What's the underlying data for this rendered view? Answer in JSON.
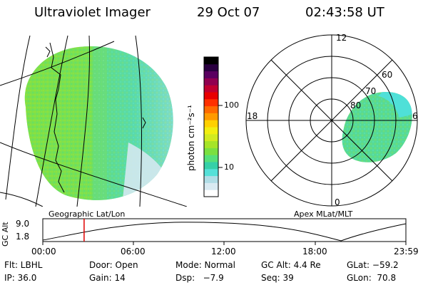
{
  "header": {
    "instrument": "Ultraviolet Imager",
    "date": "29 Oct 07",
    "time": "02:43:58 UT"
  },
  "panels": {
    "left_label": "Geographic Lat/Lon",
    "right_label": "Apex MLat/MLT"
  },
  "polar": {
    "mlt_labels": [
      "12",
      "18",
      "6",
      "0"
    ],
    "lat_labels": [
      "60",
      "70",
      "80"
    ]
  },
  "colorbar": {
    "unit": "photon cm⁻²s⁻¹",
    "ticks": [
      "100",
      "10"
    ],
    "colors": [
      "#ffffff",
      "#d9eaf2",
      "#b0dde6",
      "#55e0d8",
      "#35d0a8",
      "#55e07a",
      "#7ae040",
      "#a6e428",
      "#d2ea20",
      "#f2ee10",
      "#ffd000",
      "#ff9a00",
      "#ff6a00",
      "#ff3000",
      "#e80000",
      "#c00030",
      "#900050",
      "#5a0060",
      "#2a0040",
      "#000000"
    ]
  },
  "altitude_plot": {
    "ylabel": "GC Alt",
    "y_ticks": [
      "9.0",
      "1.8"
    ],
    "x_ticks": [
      "00:00",
      "06:00",
      "12:00",
      "18:00",
      "23:59"
    ],
    "marker_time_hours": 2.73
  },
  "status": {
    "row1": {
      "flt": "Flt: LBHL",
      "door": "Door: Open",
      "mode": "Mode: Normal",
      "gcalt": "GC Alt: 4.4 Re",
      "glat": "GLat: −59.2"
    },
    "row2": {
      "ip": "IP: 36.0",
      "gain": "Gain: 14",
      "dsp": "Dsp:   −7.9",
      "seq": "Seq: 39",
      "glon": "GLon:  70.8"
    }
  }
}
